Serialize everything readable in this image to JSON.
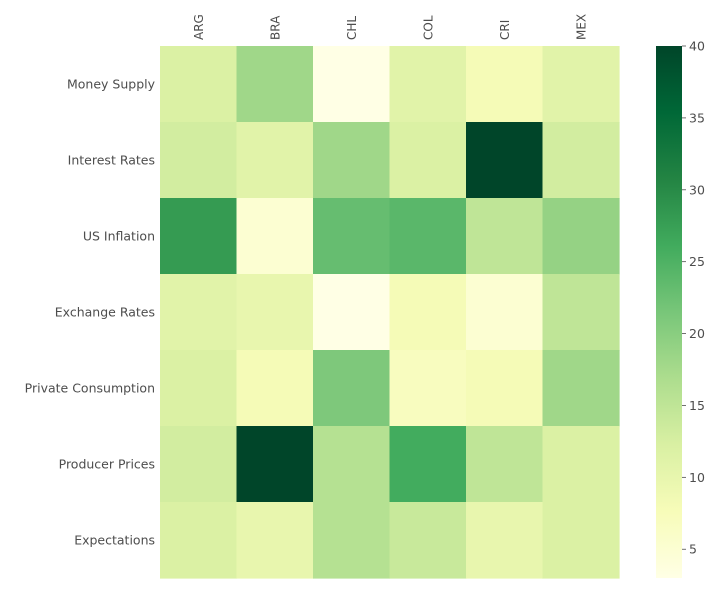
{
  "chart_data": {
    "type": "heatmap",
    "x_labels": [
      "ARG",
      "BRA",
      "CHL",
      "COL",
      "CRI",
      "MEX"
    ],
    "y_labels": [
      "Money Supply",
      "Interest Rates",
      "US Inflation",
      "Exchange Rates",
      "Private Consumption",
      "Producer Prices",
      "Expectations"
    ],
    "values": [
      [
        12,
        18,
        3,
        11,
        8,
        11
      ],
      [
        13,
        11,
        18,
        12,
        40,
        13
      ],
      [
        28,
        5,
        23,
        24,
        15,
        19
      ],
      [
        11,
        10,
        3,
        8,
        5,
        15
      ],
      [
        12,
        8,
        21,
        7,
        8,
        18
      ],
      [
        13,
        40,
        16,
        26,
        15,
        12
      ],
      [
        12,
        10,
        16,
        14,
        10,
        12
      ]
    ],
    "colorbar": {
      "min": 3,
      "max": 40,
      "ticks": [
        5,
        10,
        15,
        20,
        25,
        30,
        35,
        40
      ],
      "colormap": [
        "#ffffe5",
        "#f7fcb9",
        "#d9f0a3",
        "#addd8e",
        "#78c679",
        "#41ab5d",
        "#238443",
        "#006837",
        "#004529"
      ]
    },
    "x_axis_position": "top",
    "x_tick_rotation": 90
  }
}
